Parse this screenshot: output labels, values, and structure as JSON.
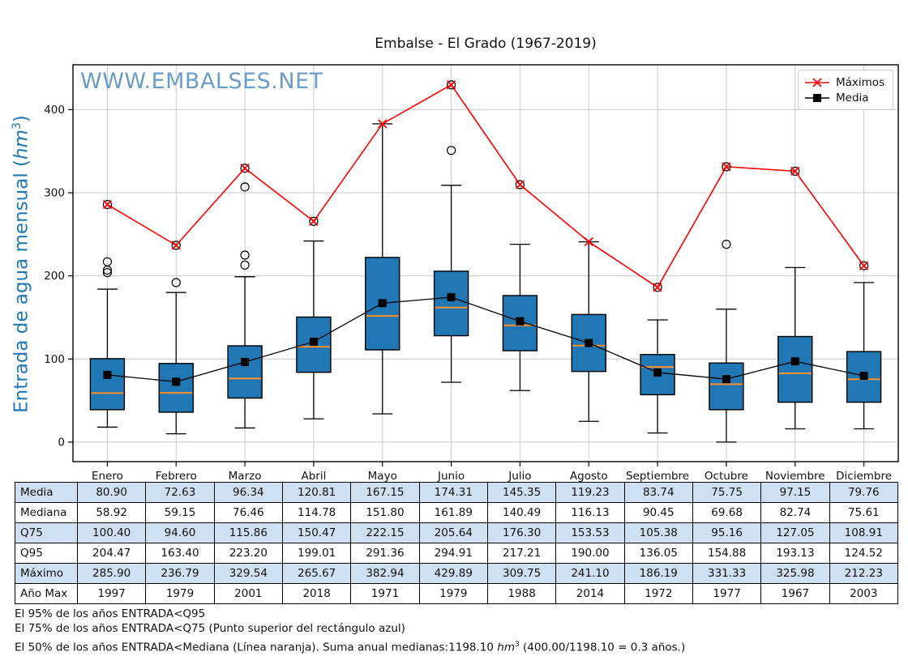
{
  "title": "Embalse - El Grado (1967-2019)",
  "watermark": "WWW.EMBALSES.NET",
  "ylabel": {
    "prefix": "Entrada de agua mensual (",
    "unit": "hm",
    "sup": "3",
    "suffix": ")"
  },
  "legend": [
    {
      "label": "Máximos",
      "marker": "red-x-line"
    },
    {
      "label": "Media",
      "marker": "black-square-line"
    }
  ],
  "colors": {
    "box_fill": "#2077b4",
    "box_edge": "#000000",
    "median_line": "#ff9128",
    "maximos_line": "#ff0000",
    "media_line": "#000000",
    "grid": "#c9c9c9",
    "ylabel_text": "#1f77b4",
    "watermark_text": "#699dc5",
    "table_stripe": "#cfe0f3"
  },
  "chart_data": {
    "type": "boxplot",
    "title": "Embalse - El Grado (1967-2019)",
    "xlabel": "",
    "ylabel": "Entrada de agua mensual (hm3)",
    "grid": true,
    "legend_position": "upper right",
    "ylim": [
      -23.5,
      454
    ],
    "yticks": [
      0,
      100,
      200,
      300,
      400
    ],
    "categories": [
      "Enero",
      "Febrero",
      "Marzo",
      "Abril",
      "Mayo",
      "Junio",
      "Julio",
      "Agosto",
      "Septiembre",
      "Octubre",
      "Noviembre",
      "Diciembre"
    ],
    "media": [
      80.9,
      72.63,
      96.34,
      120.81,
      167.15,
      174.31,
      145.35,
      119.23,
      83.74,
      75.75,
      97.15,
      79.76
    ],
    "mediana": [
      58.92,
      59.15,
      76.46,
      114.78,
      151.8,
      161.89,
      140.49,
      116.13,
      90.45,
      69.68,
      82.74,
      75.61
    ],
    "q75": [
      100.4,
      94.6,
      115.86,
      150.47,
      222.15,
      205.64,
      176.3,
      153.53,
      105.38,
      95.16,
      127.05,
      108.91
    ],
    "q95": [
      204.47,
      163.4,
      223.2,
      199.01,
      291.36,
      294.91,
      217.21,
      190.0,
      136.05,
      154.88,
      193.13,
      124.52
    ],
    "maximo": [
      285.9,
      236.79,
      329.54,
      265.67,
      382.94,
      429.89,
      309.75,
      241.1,
      186.19,
      331.33,
      325.98,
      212.23
    ],
    "ano_max": [
      1997,
      1979,
      2001,
      2018,
      1971,
      1979,
      1988,
      2014,
      1972,
      1977,
      1967,
      2003
    ],
    "q25_est": [
      39,
      36,
      53,
      84,
      111,
      128,
      110,
      85,
      57,
      39,
      48,
      48
    ],
    "whisker_low_est": [
      18,
      10,
      17,
      28,
      34,
      72,
      62,
      25,
      11,
      0,
      16,
      16
    ],
    "whisker_high_est": [
      184,
      180,
      199,
      242,
      383,
      309,
      238,
      241,
      147,
      160,
      210,
      192
    ],
    "outliers_est": [
      [
        217,
        207,
        204
      ],
      [
        192
      ],
      [
        307,
        225,
        213
      ],
      [],
      [],
      [
        351
      ],
      [],
      [],
      [],
      [
        238
      ],
      [],
      []
    ],
    "max_is_outlier": [
      true,
      true,
      true,
      true,
      false,
      true,
      true,
      false,
      true,
      true,
      true,
      true
    ],
    "series": [
      {
        "name": "Máximos",
        "color": "#ff0000",
        "marker": "x",
        "values_key": "maximo"
      },
      {
        "name": "Media",
        "color": "#000000",
        "marker": "square",
        "values_key": "media"
      }
    ]
  },
  "table": {
    "rows": [
      {
        "label": "Media",
        "key": "media",
        "format": "2dp"
      },
      {
        "label": "Mediana",
        "key": "mediana",
        "format": "2dp"
      },
      {
        "label": "Q75",
        "key": "q75",
        "format": "2dp"
      },
      {
        "label": "Q95",
        "key": "q95",
        "format": "2dp"
      },
      {
        "label": "Máximo",
        "key": "maximo",
        "format": "2dp"
      },
      {
        "label": "Año Max",
        "key": "ano_max",
        "format": "int"
      }
    ]
  },
  "notes": {
    "line1": "El 95% de los años ENTRADA<Q95",
    "line2": "El 75% de los años ENTRADA<Q75 (Punto superior del rectángulo azul)",
    "line3_pre": "El 50% de los años ENTRADA<Mediana (Línea naranja). Suma anual medianas:1198.10 ",
    "line3_unit": "hm",
    "line3_sup": "3",
    "line3_post": " (400.00/1198.10 = 0.3 años.)"
  }
}
